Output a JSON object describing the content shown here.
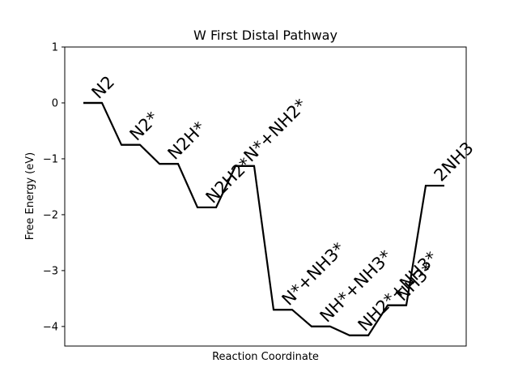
{
  "chart_data": {
    "type": "line",
    "title": "W First Distal Pathway",
    "xlabel": "Reaction Coordinate",
    "ylabel": "Free Energy (eV)",
    "ylim": [
      -4.35,
      1.0
    ],
    "yticks": [
      1,
      0,
      -1,
      -2,
      -3,
      -4
    ],
    "ytick_labels": [
      "1",
      "0",
      "−1",
      "−2",
      "−3",
      "−4"
    ],
    "grid": false,
    "legend": "none",
    "line_color": "#000000",
    "states": [
      {
        "label": "N2",
        "energy": 0.0
      },
      {
        "label": "N2*",
        "energy": -0.75
      },
      {
        "label": "N2H*",
        "energy": -1.09
      },
      {
        "label": "N2H2*",
        "energy": -1.87
      },
      {
        "label": "N*+NH2*",
        "energy": -1.13
      },
      {
        "label": "N*+NH3*",
        "energy": -3.7
      },
      {
        "label": "NH*+NH3*",
        "energy": -4.0
      },
      {
        "label": "NH2*+NH3*",
        "energy": -4.16
      },
      {
        "label": "NH3*",
        "energy": -3.62
      },
      {
        "label": "2NH3",
        "energy": -1.48
      }
    ]
  }
}
